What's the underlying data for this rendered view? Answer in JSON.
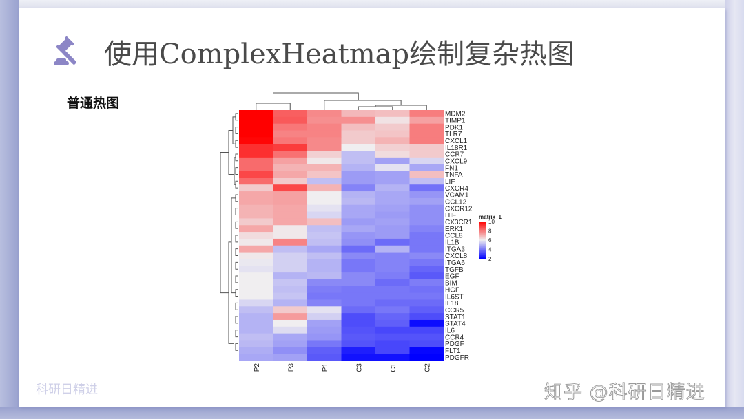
{
  "slide": {
    "title": "使用ComplexHeatmap绘制复杂热图",
    "subtitle": "普通热图",
    "watermark_left": "科研日精进",
    "watermark_right": "知乎 @科研日精进",
    "icon": "gavel-icon",
    "accent_color": "#8c86c6"
  },
  "chart_data": {
    "type": "heatmap",
    "title": "",
    "legend_title": "matrix_1",
    "legend_ticks": [
      10,
      8,
      6,
      4,
      2
    ],
    "color_scale": {
      "min": 2,
      "mid": 6,
      "max": 10,
      "low": "#0000ff",
      "midcolor": "#f0eef0",
      "high": "#ff0000"
    },
    "columns": [
      "P2",
      "P3",
      "P1",
      "C3",
      "C1",
      "C2"
    ],
    "rows": [
      "MDM2",
      "TIMP1",
      "PDK1",
      "TLR7",
      "CXCL1",
      "IL18R1",
      "CCR7",
      "CXCL9",
      "FN1",
      "TNFA",
      "LIF",
      "CXCR4",
      "VCAM1",
      "CCL12",
      "CXCR12",
      "HIF",
      "CX3CR1",
      "ERK1",
      "CCL8",
      "IL1B",
      "ITGA3",
      "CXCL8",
      "ITGA6",
      "TGFB",
      "EGF",
      "BIM",
      "HGF",
      "IL6ST",
      "IL18",
      "CCR5",
      "STAT1",
      "STAT4",
      "IL6",
      "CCR4",
      "PDGF",
      "FLT1",
      "PDGFR"
    ],
    "values": [
      [
        10.0,
        8.4,
        7.7,
        6.9,
        6.8,
        7.9
      ],
      [
        10.0,
        8.5,
        7.6,
        7.6,
        6.2,
        7.3
      ],
      [
        10.0,
        8.0,
        7.8,
        6.8,
        6.6,
        7.9
      ],
      [
        10.0,
        7.8,
        7.8,
        6.6,
        6.7,
        7.9
      ],
      [
        9.9,
        8.0,
        7.7,
        6.6,
        7.0,
        7.9
      ],
      [
        9.2,
        9.0,
        7.7,
        6.0,
        6.5,
        6.6
      ],
      [
        9.2,
        8.1,
        6.5,
        5.2,
        6.3,
        6.6
      ],
      [
        8.2,
        7.3,
        6.1,
        5.2,
        4.7,
        5.6
      ],
      [
        8.2,
        7.0,
        7.0,
        5.0,
        5.8,
        4.8
      ],
      [
        8.8,
        7.2,
        6.7,
        4.6,
        4.7,
        6.8
      ],
      [
        8.2,
        6.6,
        5.2,
        4.6,
        4.7,
        5.2
      ],
      [
        6.6,
        8.8,
        7.0,
        4.2,
        5.0,
        3.9
      ],
      [
        7.2,
        7.3,
        6.0,
        5.0,
        4.8,
        4.5
      ],
      [
        7.2,
        7.3,
        6.0,
        5.1,
        4.8,
        4.7
      ],
      [
        7.0,
        7.2,
        5.8,
        4.8,
        4.7,
        4.4
      ],
      [
        7.0,
        7.2,
        5.6,
        4.8,
        4.6,
        4.4
      ],
      [
        6.6,
        7.2,
        6.8,
        4.6,
        4.7,
        4.4
      ],
      [
        7.2,
        6.1,
        5.2,
        4.8,
        4.6,
        4.2
      ],
      [
        6.3,
        6.1,
        5.3,
        4.5,
        4.6,
        4.0
      ],
      [
        6.1,
        7.8,
        5.2,
        4.4,
        3.8,
        4.0
      ],
      [
        7.2,
        5.2,
        4.8,
        3.8,
        5.0,
        4.0
      ],
      [
        6.1,
        5.5,
        5.2,
        4.3,
        4.2,
        4.3
      ],
      [
        5.9,
        5.5,
        5.0,
        4.0,
        4.2,
        4.0
      ],
      [
        5.8,
        5.5,
        5.0,
        4.0,
        4.2,
        3.7
      ],
      [
        6.0,
        5.0,
        5.1,
        4.3,
        4.1,
        3.5
      ],
      [
        6.0,
        5.3,
        4.3,
        4.3,
        3.8,
        4.1
      ],
      [
        6.0,
        5.2,
        4.1,
        4.0,
        4.0,
        3.9
      ],
      [
        6.0,
        5.3,
        4.0,
        4.0,
        4.0,
        4.0
      ],
      [
        5.6,
        5.0,
        4.2,
        4.0,
        3.8,
        3.8
      ],
      [
        5.2,
        6.6,
        5.8,
        3.8,
        4.0,
        3.6
      ],
      [
        5.0,
        7.4,
        5.5,
        3.3,
        3.7,
        3.3
      ],
      [
        5.0,
        6.0,
        4.7,
        3.3,
        3.6,
        2.2
      ],
      [
        5.0,
        5.7,
        4.6,
        3.4,
        3.2,
        3.2
      ],
      [
        5.2,
        4.8,
        4.5,
        3.5,
        3.4,
        3.4
      ],
      [
        5.1,
        4.7,
        4.0,
        3.4,
        3.2,
        3.3
      ],
      [
        4.9,
        4.4,
        3.6,
        2.5,
        3.2,
        2.1
      ],
      [
        4.8,
        4.7,
        3.5,
        2.3,
        2.3,
        2.0
      ]
    ],
    "column_dendrogram": "((P2,P3),(C3,(C1... P1 grouped with C cluster)))",
    "row_dendrogram": true,
    "legend_position": "right"
  }
}
